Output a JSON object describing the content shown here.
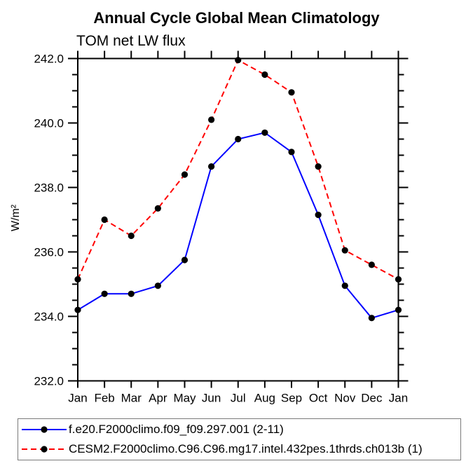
{
  "header": {
    "title": "Annual Cycle Global Mean Climatology",
    "subtitle": "TOM net LW flux"
  },
  "chart_data": {
    "type": "line",
    "title": "Annual Cycle Global Mean Climatology",
    "subtitle": "TOM net LW flux",
    "xlabel": "",
    "ylabel": "W/m²",
    "x_tick_labels": [
      "Jan",
      "Feb",
      "Mar",
      "Apr",
      "May",
      "Jun",
      "Jul",
      "Aug",
      "Sep",
      "Oct",
      "Nov",
      "Dec",
      "Jan"
    ],
    "ylim": [
      232.0,
      242.0
    ],
    "y_ticks": [
      {
        "v": 232.0,
        "label": "232.0"
      },
      {
        "v": 234.0,
        "label": "234.0"
      },
      {
        "v": 236.0,
        "label": "236.0"
      },
      {
        "v": 238.0,
        "label": "238.0"
      },
      {
        "v": 240.0,
        "label": "240.0"
      },
      {
        "v": 242.0,
        "label": "242.0"
      }
    ],
    "y_minor_step": 0.5,
    "grid": false,
    "frame": true,
    "legend_position": "bottom-left",
    "axis_color": "#000000",
    "marker": "circle",
    "marker_color": "#000000",
    "series": [
      {
        "name": "f.e20.F2000climo.f09_f09.297.001 (2-11)",
        "color": "#0000ff",
        "style": "solid",
        "values": [
          234.2,
          234.7,
          234.7,
          234.95,
          235.75,
          238.65,
          239.5,
          239.7,
          239.1,
          237.15,
          234.95,
          233.95,
          234.2
        ]
      },
      {
        "name": "CESM2.F2000climo.C96.C96.mg17.intel.432pes.1thrds.ch013b (1)",
        "color": "#ff0000",
        "style": "dashed",
        "values": [
          235.15,
          237.0,
          236.5,
          237.35,
          238.4,
          240.1,
          241.95,
          241.5,
          240.95,
          238.65,
          236.05,
          235.6,
          235.15
        ]
      }
    ]
  }
}
